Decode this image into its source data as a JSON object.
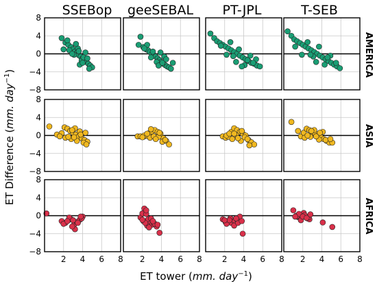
{
  "colors": {
    "AMERICA": "#1a9e74",
    "ASIA": "#f0b820",
    "AFRICA": "#d9304a"
  },
  "chart_data": {
    "type": "scatter",
    "xlabel_prefix": "ET tower (",
    "xlabel_unit": "mm. day",
    "xlabel_exp": "−1",
    "xlabel_suffix": ")",
    "ylabel_prefix": "ET Difference (",
    "ylabel_unit": "mm. day",
    "ylabel_exp": "−1",
    "ylabel_suffix": ")",
    "xlim": [
      0,
      8
    ],
    "ylim": [
      -8,
      8
    ],
    "x_ticks": [
      "2",
      "4",
      "6",
      "8"
    ],
    "y_ticks": [
      "8",
      "4",
      "0",
      "−4",
      "−8"
    ],
    "grid": true,
    "columns": [
      "SSEBop",
      "geeSEBAL",
      "PT-JPL",
      "T-SEB"
    ],
    "rows": [
      "AMERICA",
      "ASIA",
      "AFRICA"
    ],
    "series": [
      {
        "col": 0,
        "row": 0,
        "x": [
          1.8,
          2.2,
          2.5,
          2.8,
          3.0,
          3.2,
          3.4,
          3.6,
          3.8,
          4.0,
          4.2,
          4.4,
          4.6,
          4.8,
          5.0,
          2.6,
          3.1,
          3.5,
          3.9,
          4.3,
          2.0,
          2.4,
          3.3,
          3.7,
          4.1,
          4.5,
          2.9,
          3.6,
          4.0,
          4.7
        ],
        "y": [
          3.5,
          2.5,
          2.0,
          1.5,
          1.0,
          0.5,
          0.2,
          -0.3,
          -0.6,
          -1.0,
          -1.4,
          -1.8,
          -2.2,
          -2.6,
          -3.0,
          0.8,
          -0.2,
          1.2,
          -1.5,
          0.3,
          1.0,
          3.0,
          2.2,
          -2.4,
          -0.8,
          -1.0,
          0.0,
          0.6,
          -2.0,
          -3.3
        ]
      },
      {
        "col": 1,
        "row": 0,
        "x": [
          1.6,
          1.8,
          2.1,
          2.4,
          2.6,
          2.8,
          3.0,
          3.2,
          3.4,
          3.6,
          3.8,
          4.0,
          4.2,
          4.4,
          4.6,
          4.8,
          5.0,
          2.5,
          3.1,
          3.5,
          3.9,
          4.3,
          2.2,
          2.9,
          3.7,
          4.1,
          4.5,
          5.2
        ],
        "y": [
          2.0,
          3.8,
          1.5,
          1.0,
          0.8,
          0.4,
          0.0,
          -0.3,
          -0.6,
          -1.0,
          -1.4,
          -1.8,
          -2.2,
          -2.5,
          -2.8,
          -3.0,
          -3.3,
          2.0,
          0.5,
          -1.8,
          0.3,
          -0.6,
          1.2,
          -0.8,
          -2.6,
          -2.0,
          -1.2,
          -2.0
        ]
      },
      {
        "col": 2,
        "row": 0,
        "x": [
          0.5,
          0.9,
          1.2,
          1.5,
          1.8,
          2.1,
          2.4,
          2.7,
          3.0,
          3.3,
          3.6,
          3.9,
          4.2,
          4.5,
          4.8,
          5.1,
          5.4,
          5.7,
          2.2,
          2.9,
          3.5,
          4.1,
          4.7,
          5.3,
          1.6,
          3.2,
          4.4,
          5.0,
          3.8,
          2.6
        ],
        "y": [
          4.5,
          3.5,
          2.8,
          2.4,
          2.0,
          1.6,
          1.2,
          0.8,
          0.4,
          0.0,
          -0.4,
          -0.8,
          -1.2,
          -1.6,
          -2.0,
          -2.2,
          -2.6,
          -2.8,
          -0.2,
          -0.5,
          1.0,
          -2.5,
          -0.4,
          -1.2,
          1.8,
          -1.8,
          -1.4,
          -2.0,
          -2.8,
          2.6
        ]
      },
      {
        "col": 3,
        "row": 0,
        "x": [
          0.4,
          0.8,
          1.1,
          1.4,
          1.7,
          2.0,
          2.3,
          2.6,
          2.9,
          3.2,
          3.5,
          3.8,
          4.1,
          4.4,
          4.7,
          5.0,
          5.3,
          5.6,
          5.9,
          1.9,
          2.5,
          3.1,
          3.7,
          4.3,
          4.9,
          1.2,
          2.8,
          3.4,
          4.6,
          5.5
        ],
        "y": [
          5.0,
          4.0,
          3.2,
          2.8,
          2.4,
          2.0,
          1.6,
          1.2,
          0.8,
          0.4,
          0.0,
          -0.4,
          -0.8,
          -1.2,
          -1.6,
          -2.0,
          -2.4,
          -2.8,
          -3.2,
          -0.2,
          2.6,
          -0.6,
          1.6,
          -2.4,
          -0.4,
          1.6,
          -0.2,
          -1.8,
          -0.8,
          -2.0
        ]
      },
      {
        "col": 0,
        "row": 1,
        "x": [
          0.5,
          1.3,
          1.8,
          2.1,
          2.4,
          2.7,
          3.0,
          3.3,
          3.6,
          3.9,
          4.2,
          4.5,
          2.2,
          2.8,
          3.2,
          3.7,
          4.1,
          2.5,
          3.4,
          4.4,
          1.6,
          2.9,
          3.8,
          4.3,
          3.1
        ],
        "y": [
          2.0,
          0.2,
          0.5,
          1.8,
          1.5,
          1.0,
          0.6,
          0.2,
          -0.2,
          -0.6,
          -1.0,
          -1.4,
          -0.5,
          -0.8,
          1.6,
          0.9,
          -1.6,
          -0.3,
          -1.2,
          -2.0,
          -0.2,
          1.2,
          0.2,
          0.6,
          -0.4
        ]
      },
      {
        "col": 1,
        "row": 1,
        "x": [
          1.5,
          1.8,
          2.1,
          2.4,
          2.7,
          3.0,
          3.3,
          3.6,
          3.9,
          4.2,
          4.5,
          4.8,
          2.2,
          2.8,
          3.2,
          3.7,
          4.1,
          2.5,
          3.4,
          4.4,
          2.9,
          3.8,
          2.0
        ],
        "y": [
          -0.2,
          -0.2,
          -0.3,
          -0.1,
          0.5,
          0.9,
          1.2,
          0.8,
          0.4,
          -0.6,
          -1.2,
          -2.0,
          0.0,
          -0.5,
          -0.2,
          -0.3,
          -1.4,
          0.4,
          -0.8,
          -1.0,
          1.4,
          0.6,
          -0.4
        ]
      },
      {
        "col": 2,
        "row": 1,
        "x": [
          1.8,
          2.1,
          2.4,
          2.7,
          3.0,
          3.3,
          3.6,
          3.9,
          4.2,
          4.5,
          4.8,
          5.1,
          2.2,
          2.8,
          3.2,
          3.7,
          4.1,
          2.5,
          3.4,
          4.4,
          3.0,
          3.8,
          4.6
        ],
        "y": [
          -0.2,
          -0.5,
          -0.3,
          0.8,
          1.6,
          1.2,
          0.8,
          0.4,
          0.0,
          -1.0,
          -1.5,
          -2.0,
          0.0,
          -0.8,
          0.1,
          -1.2,
          -0.4,
          0.4,
          -0.6,
          -0.8,
          0.4,
          1.0,
          -2.2
        ]
      },
      {
        "col": 3,
        "row": 1,
        "x": [
          0.8,
          1.5,
          1.8,
          2.1,
          2.4,
          2.7,
          3.0,
          3.3,
          3.6,
          3.9,
          4.2,
          4.5,
          4.8,
          5.1,
          2.2,
          2.8,
          3.2,
          3.7,
          4.1,
          2.5,
          3.4,
          4.4,
          2.9,
          3.8,
          4.9
        ],
        "y": [
          3.0,
          1.0,
          -0.2,
          0.6,
          1.5,
          1.2,
          0.8,
          0.4,
          0.0,
          -0.4,
          -0.8,
          -1.2,
          -1.6,
          -1.6,
          -0.5,
          -0.3,
          1.2,
          -0.9,
          0.8,
          0.0,
          -0.2,
          -1.0,
          1.0,
          0.6,
          -0.8
        ]
      },
      {
        "col": 0,
        "row": 2,
        "x": [
          0.2,
          1.8,
          2.2,
          2.5,
          2.8,
          3.1,
          3.4,
          3.7,
          4.0,
          2.0,
          2.6,
          3.0,
          3.5,
          3.9,
          2.4,
          3.2,
          3.8,
          2.9
        ],
        "y": [
          0.5,
          -1.2,
          -1.6,
          -1.0,
          -0.8,
          -2.0,
          -1.4,
          -0.9,
          -0.2,
          -1.8,
          -0.4,
          -1.0,
          -1.6,
          -0.6,
          -1.2,
          -3.0,
          -0.2,
          -2.4
        ]
      },
      {
        "col": 1,
        "row": 2,
        "x": [
          1.8,
          2.0,
          2.2,
          2.4,
          2.6,
          2.8,
          3.0,
          3.2,
          3.5,
          3.8,
          2.1,
          2.5,
          2.9,
          3.3,
          2.3,
          2.7,
          2.0,
          2.4,
          3.1,
          3.6
        ],
        "y": [
          -0.4,
          0.5,
          1.6,
          0.4,
          -0.8,
          -1.8,
          -2.0,
          -1.6,
          -2.4,
          -3.8,
          -1.2,
          -2.2,
          -0.6,
          -1.8,
          -1.6,
          -2.6,
          -0.9,
          1.2,
          -1.2,
          -2.0
        ]
      },
      {
        "col": 2,
        "row": 2,
        "x": [
          1.8,
          2.1,
          2.4,
          2.7,
          3.0,
          3.3,
          3.6,
          3.9,
          2.2,
          2.6,
          3.0,
          3.4,
          3.8,
          2.5,
          3.2,
          2.0
        ],
        "y": [
          -0.8,
          -1.4,
          -1.2,
          -1.6,
          -1.0,
          -0.8,
          -0.2,
          -4.0,
          -1.8,
          -0.6,
          -2.2,
          -1.6,
          -1.2,
          -1.0,
          -0.6,
          -1.0
        ]
      },
      {
        "col": 3,
        "row": 2,
        "x": [
          1.0,
          1.3,
          1.5,
          1.7,
          1.9,
          2.1,
          2.3,
          2.5,
          2.7,
          1.4,
          1.8,
          2.2,
          2.6,
          1.6,
          2.0,
          2.4,
          4.1,
          5.1,
          1.2,
          2.8
        ],
        "y": [
          1.2,
          0.0,
          -0.3,
          -0.4,
          0.2,
          0.6,
          -0.2,
          -0.6,
          -0.8,
          -0.1,
          -1.0,
          0.1,
          -0.4,
          0.4,
          -0.2,
          -0.5,
          -1.5,
          -2.5,
          -0.2,
          0.3
        ]
      }
    ]
  }
}
